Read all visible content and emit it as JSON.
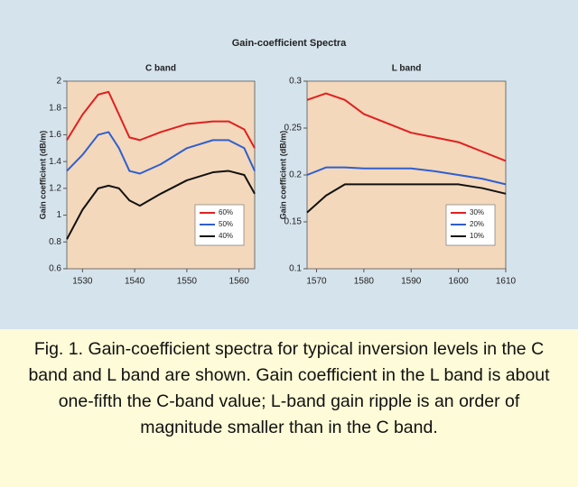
{
  "title": "Gain-coefficient Spectra",
  "chart_data": [
    {
      "type": "line",
      "title": "C band",
      "y_label": "Gain coefficient (dB/m)",
      "x": [
        1527,
        1530,
        1533,
        1535,
        1537,
        1539,
        1541,
        1545,
        1550,
        1555,
        1558,
        1561,
        1563
      ],
      "series": [
        {
          "name": "60%",
          "color": "#e02020",
          "values": [
            1.56,
            1.75,
            1.9,
            1.92,
            1.75,
            1.58,
            1.56,
            1.62,
            1.68,
            1.7,
            1.7,
            1.64,
            1.5
          ]
        },
        {
          "name": "50%",
          "color": "#2f5fd0",
          "values": [
            1.33,
            1.45,
            1.6,
            1.62,
            1.5,
            1.33,
            1.31,
            1.38,
            1.5,
            1.56,
            1.56,
            1.5,
            1.33
          ]
        },
        {
          "name": "40%",
          "color": "#111111",
          "values": [
            0.82,
            1.04,
            1.2,
            1.22,
            1.2,
            1.11,
            1.07,
            1.16,
            1.26,
            1.32,
            1.33,
            1.3,
            1.16
          ]
        }
      ],
      "xlim": [
        1527,
        1563
      ],
      "xticks": [
        1530,
        1540,
        1550,
        1560
      ],
      "ylim": [
        0.6,
        2
      ],
      "yticks": [
        0.6,
        0.8,
        1,
        1.2,
        1.4,
        1.6,
        1.8,
        2
      ],
      "legend": "lower right"
    },
    {
      "type": "line",
      "title": "L band",
      "y_label": "Gain coefficient (dB/m)",
      "x": [
        1568,
        1572,
        1576,
        1580,
        1585,
        1590,
        1595,
        1600,
        1605,
        1610
      ],
      "series": [
        {
          "name": "30%",
          "color": "#e02020",
          "values": [
            0.28,
            0.287,
            0.28,
            0.265,
            0.255,
            0.245,
            0.24,
            0.235,
            0.225,
            0.215
          ]
        },
        {
          "name": "20%",
          "color": "#2f5fd0",
          "values": [
            0.2,
            0.208,
            0.208,
            0.207,
            0.207,
            0.207,
            0.204,
            0.2,
            0.196,
            0.19
          ]
        },
        {
          "name": "10%",
          "color": "#111111",
          "values": [
            0.16,
            0.178,
            0.19,
            0.19,
            0.19,
            0.19,
            0.19,
            0.19,
            0.186,
            0.18
          ]
        }
      ],
      "xlim": [
        1568,
        1610
      ],
      "xticks": [
        1570,
        1580,
        1590,
        1600,
        1610
      ],
      "ylim": [
        0.1,
        0.3
      ],
      "yticks": [
        0.1,
        0.15,
        0.2,
        0.25,
        0.3
      ],
      "legend": "lower right"
    }
  ],
  "caption": "Fig. 1. Gain-coefficient spectra for typical inversion levels in the C band and L band are shown. Gain coefficient in the L band is about one-fifth the C-band value; L-band gain ripple is an order of magnitude smaller than in the C band."
}
